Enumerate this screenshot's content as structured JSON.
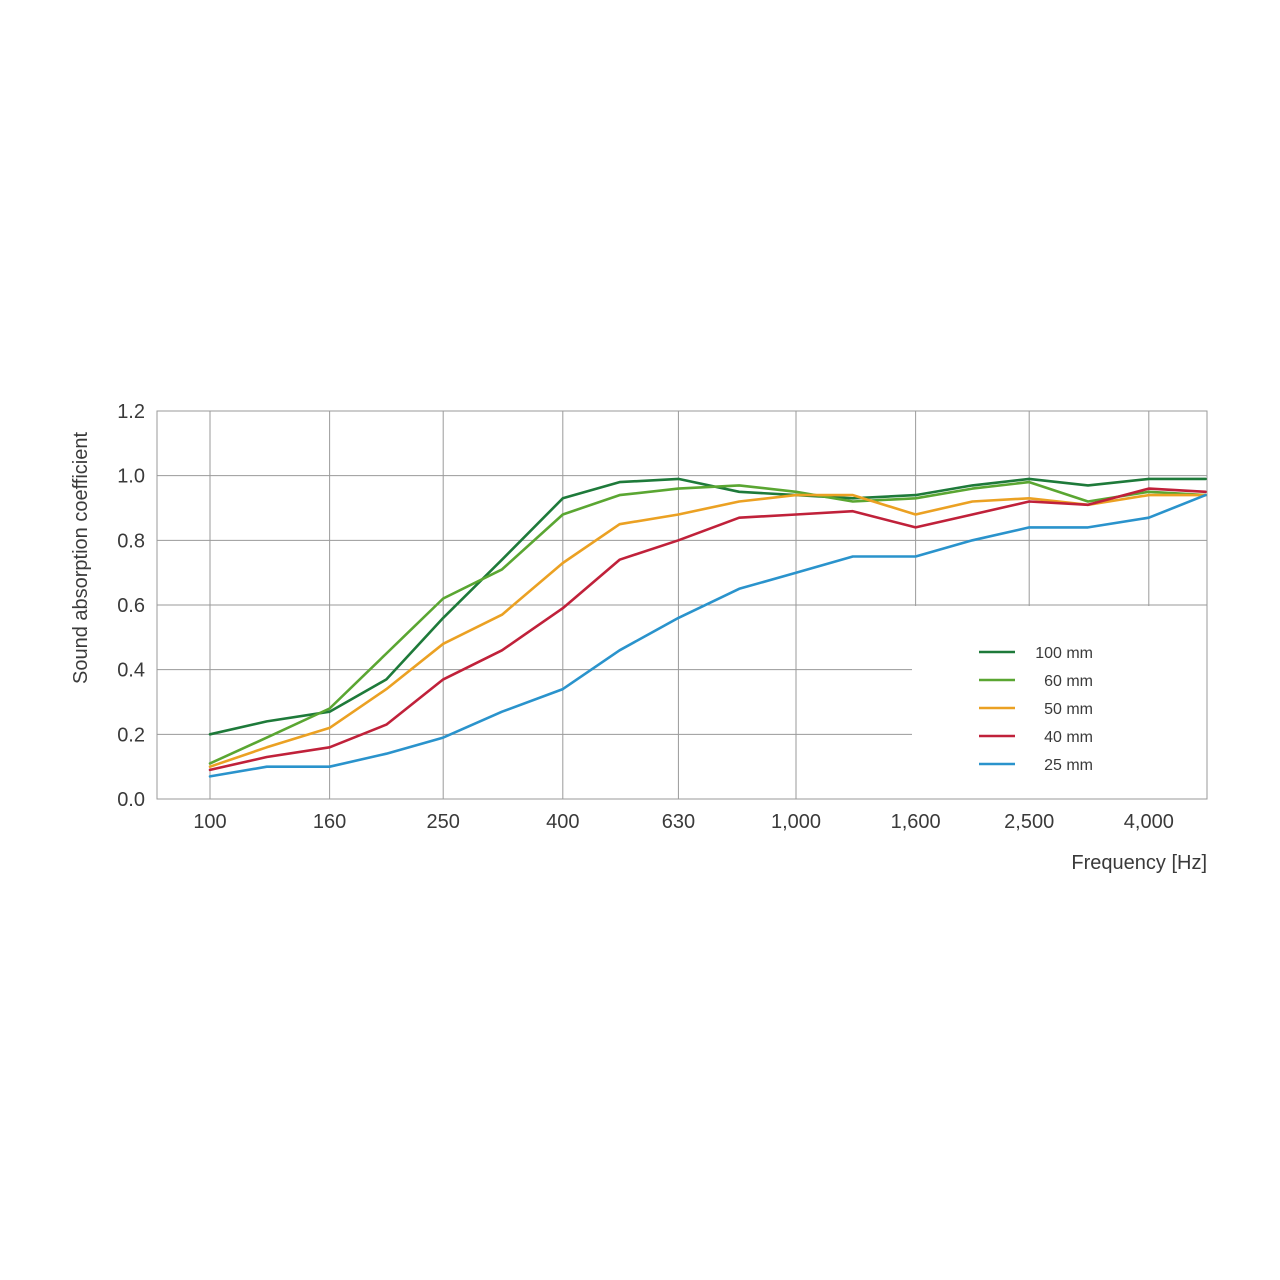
{
  "chart_data": {
    "type": "line",
    "title": "",
    "xlabel": "Frequency [Hz]",
    "ylabel": "Sound absorption coefficient",
    "x_scale": "log",
    "grid": true,
    "legend_placement": "bottom-right",
    "ylim": [
      0,
      1.2
    ],
    "y_ticks": [
      "0.0",
      "0.2",
      "0.4",
      "0.6",
      "0.8",
      "1.0",
      "1.2"
    ],
    "x_ticks": [
      {
        "value": 100,
        "label": "100"
      },
      {
        "value": 160,
        "label": "160"
      },
      {
        "value": 250,
        "label": "250"
      },
      {
        "value": 400,
        "label": "400"
      },
      {
        "value": 630,
        "label": "630"
      },
      {
        "value": 1000,
        "label": "1,000"
      },
      {
        "value": 1600,
        "label": "1,600"
      },
      {
        "value": 2500,
        "label": "2,500"
      },
      {
        "value": 4000,
        "label": "4,000"
      }
    ],
    "x": [
      100,
      125,
      160,
      200,
      250,
      315,
      400,
      500,
      630,
      800,
      1000,
      1250,
      1600,
      2000,
      2500,
      3150,
      4000,
      5000
    ],
    "series": [
      {
        "name": "100 mm",
        "color": "#1e7a3a",
        "values": [
          0.2,
          0.24,
          0.27,
          0.37,
          0.56,
          0.74,
          0.93,
          0.98,
          0.99,
          0.95,
          0.94,
          0.93,
          0.94,
          0.97,
          0.99,
          0.97,
          0.99,
          0.99
        ]
      },
      {
        "name": "60 mm",
        "color": "#5aa632",
        "values": [
          0.11,
          0.19,
          0.28,
          0.45,
          0.62,
          0.71,
          0.88,
          0.94,
          0.96,
          0.97,
          0.95,
          0.92,
          0.93,
          0.96,
          0.98,
          0.92,
          0.95,
          0.94
        ]
      },
      {
        "name": "50 mm",
        "color": "#eba123",
        "values": [
          0.1,
          0.16,
          0.22,
          0.34,
          0.48,
          0.57,
          0.73,
          0.85,
          0.88,
          0.92,
          0.94,
          0.94,
          0.88,
          0.92,
          0.93,
          0.91,
          0.94,
          0.94
        ]
      },
      {
        "name": "40 mm",
        "color": "#c0213a",
        "values": [
          0.09,
          0.13,
          0.16,
          0.23,
          0.37,
          0.46,
          0.59,
          0.74,
          0.8,
          0.87,
          0.88,
          0.89,
          0.84,
          0.88,
          0.92,
          0.91,
          0.96,
          0.95
        ]
      },
      {
        "name": "25 mm",
        "color": "#2a93cc",
        "values": [
          0.07,
          0.1,
          0.1,
          0.14,
          0.19,
          0.27,
          0.34,
          0.46,
          0.56,
          0.65,
          0.7,
          0.75,
          0.75,
          0.8,
          0.84,
          0.84,
          0.87,
          0.94
        ]
      }
    ],
    "legend": [
      {
        "label": "100 mm",
        "color": "#1e7a3a"
      },
      {
        "label": "60 mm",
        "color": "#5aa632"
      },
      {
        "label": "50 mm",
        "color": "#eba123"
      },
      {
        "label": "40 mm",
        "color": "#c0213a"
      },
      {
        "label": "25 mm",
        "color": "#2a93cc"
      }
    ]
  }
}
